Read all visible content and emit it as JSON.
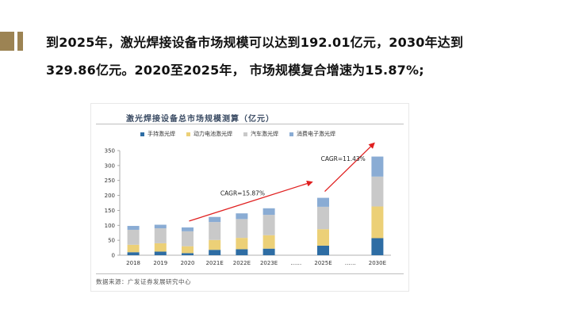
{
  "headline": {
    "line1": "到2025年，激光焊接设备市场规模可以达到192.01亿元，2030年达到",
    "line2": "329.86亿元。2020至2025年， 市场规模复合增速为15.87%;"
  },
  "colors": {
    "accent_gold": "#9c8353",
    "arrow_red": "#e02020"
  },
  "chart_data": {
    "type": "bar",
    "stacked": true,
    "title": "激光焊接设备总市场规模测算（亿元）",
    "categories": [
      "2018",
      "2019",
      "2020",
      "2021E",
      "2022E",
      "2023E",
      "……",
      "2025E",
      "……",
      "2030E"
    ],
    "series": [
      {
        "name": "手持激光焊",
        "color": "#2e6da4",
        "values": [
          10,
          12,
          7,
          18,
          20,
          22,
          null,
          32,
          null,
          57
        ]
      },
      {
        "name": "动力电池激光焊",
        "color": "#ecd077",
        "values": [
          25,
          28,
          23,
          33,
          38,
          45,
          null,
          55,
          null,
          106
        ]
      },
      {
        "name": "汽车激光焊",
        "color": "#c9c9c9",
        "values": [
          50,
          50,
          50,
          60,
          63,
          68,
          null,
          75,
          null,
          100
        ]
      },
      {
        "name": "消费电子激光焊",
        "color": "#8aacd4",
        "values": [
          13,
          12,
          13,
          17,
          19,
          22,
          null,
          30,
          null,
          67
        ]
      }
    ],
    "ylim": [
      0,
      350
    ],
    "yticks": [
      0,
      50,
      100,
      150,
      200,
      250,
      300,
      350
    ],
    "legend": "top",
    "annotations": [
      {
        "text": "CAGR=15.87%",
        "from": "2020",
        "to": "2025E"
      },
      {
        "text": "CAGR=11.43%",
        "from": "2025E",
        "to": "2030E"
      }
    ],
    "source": "数据来源：广发证券发展研究中心"
  }
}
